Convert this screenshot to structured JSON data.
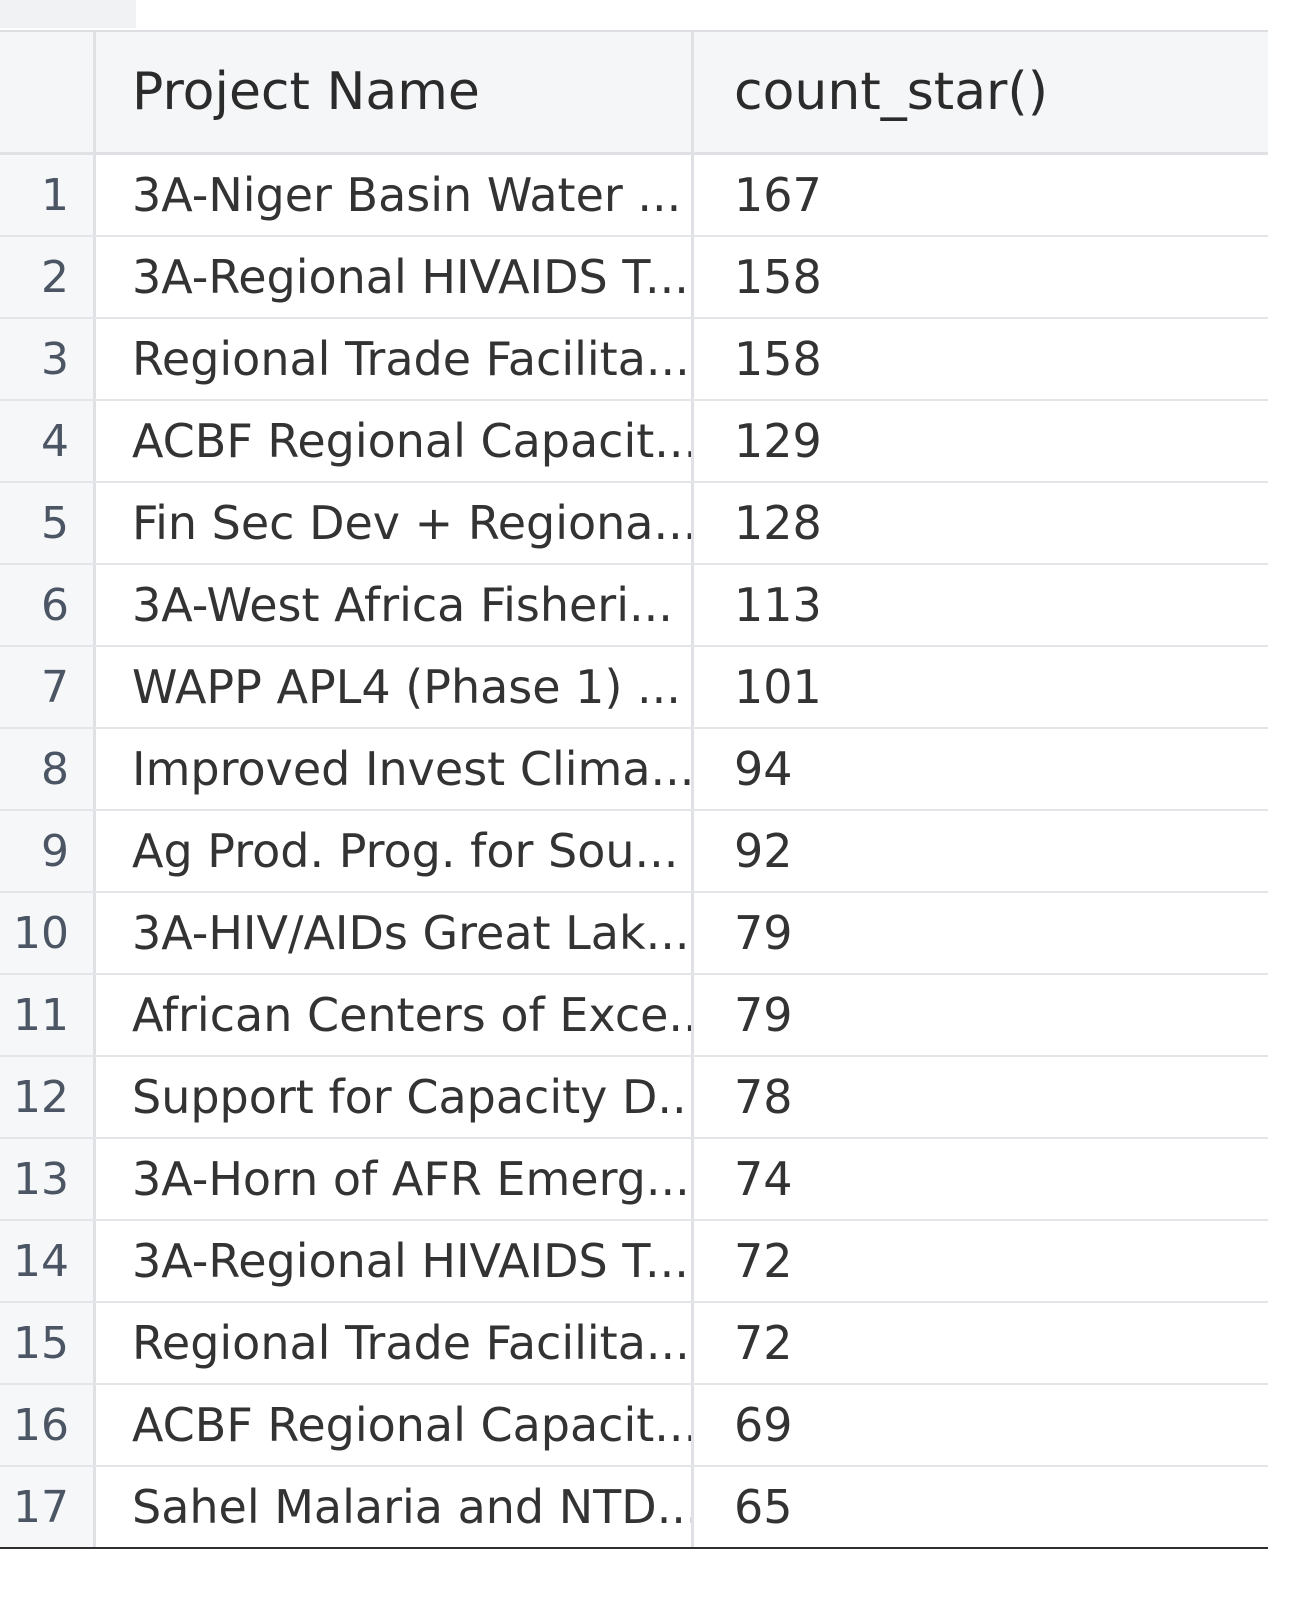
{
  "table": {
    "columns": [
      "Project Name",
      "count_star()"
    ],
    "rows": [
      {
        "index": "1",
        "name": "3A-Niger Basin Water ...",
        "count": "167"
      },
      {
        "index": "2",
        "name": "3A-Regional HIVAIDS T...",
        "count": "158"
      },
      {
        "index": "3",
        "name": "Regional Trade Facilita...",
        "count": "158"
      },
      {
        "index": "4",
        "name": "ACBF Regional Capacit...",
        "count": "129"
      },
      {
        "index": "5",
        "name": "Fin Sec Dev + Regiona...",
        "count": "128"
      },
      {
        "index": "6",
        "name": "3A-West Africa Fisheri...",
        "count": "113"
      },
      {
        "index": "7",
        "name": "WAPP APL4 (Phase 1) ...",
        "count": "101"
      },
      {
        "index": "8",
        "name": "Improved Invest Clima...",
        "count": "94"
      },
      {
        "index": "9",
        "name": "Ag Prod. Prog. for Sou...",
        "count": "92"
      },
      {
        "index": "10",
        "name": "3A-HIV/AIDs Great Lak...",
        "count": "79"
      },
      {
        "index": "11",
        "name": "African Centers of Exce...",
        "count": "79"
      },
      {
        "index": "12",
        "name": "Support for Capacity D...",
        "count": "78"
      },
      {
        "index": "13",
        "name": "3A-Horn of AFR Emerg...",
        "count": "74"
      },
      {
        "index": "14",
        "name": "3A-Regional HIVAIDS T...",
        "count": "72"
      },
      {
        "index": "15",
        "name": "Regional Trade Facilita...",
        "count": "72"
      },
      {
        "index": "16",
        "name": "ACBF Regional Capacit...",
        "count": "69"
      },
      {
        "index": "17",
        "name": "Sahel Malaria and NTD...",
        "count": "65"
      }
    ]
  }
}
